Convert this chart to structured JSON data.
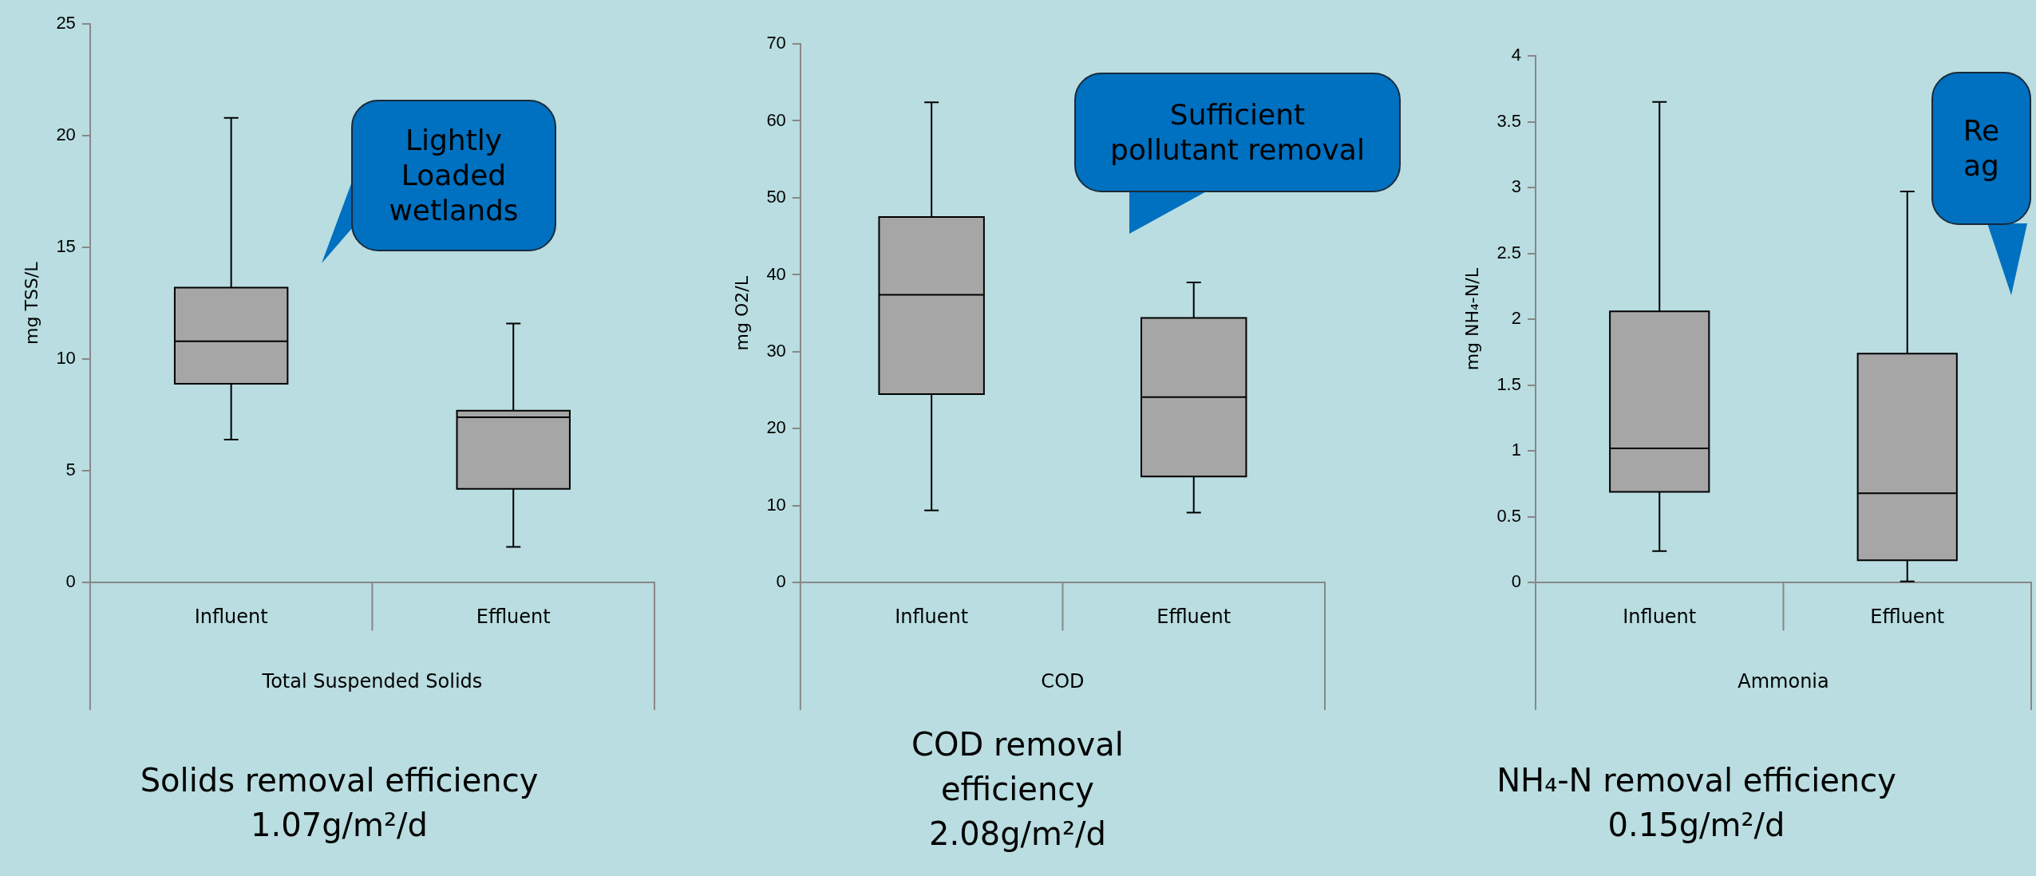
{
  "chart_data": [
    {
      "type": "box",
      "categories": [
        "Influent",
        "Effluent"
      ],
      "xlabel": "Total Suspended Solids",
      "ylabel": "mg TSS/L",
      "ylim": [
        0,
        25
      ],
      "yticks": [
        0,
        5,
        10,
        15,
        20,
        25
      ],
      "series": [
        {
          "color": "#a6a6a6",
          "boxes": [
            {
              "low": 6.4,
              "q1": 8.9,
              "median": 10.8,
              "q3": 13.2,
              "high": 20.8
            },
            {
              "low": 1.6,
              "q1": 4.2,
              "median": 7.4,
              "q3": 7.7,
              "high": 11.6
            }
          ]
        }
      ],
      "annotations": [
        "Lightly\nLoaded\nwetlands",
        "Solids removal efficiency\n1.07g/m²/d"
      ]
    },
    {
      "type": "box",
      "categories": [
        "Influent",
        "Effluent"
      ],
      "xlabel": "COD",
      "ylabel": "mg O2/L",
      "ylim": [
        0,
        70
      ],
      "yticks": [
        0,
        10,
        20,
        30,
        40,
        50,
        60,
        70
      ],
      "series": [
        {
          "color": "#a6a6a6",
          "boxes": [
            {
              "low": 9.4,
              "q1": 24.5,
              "median": 37.4,
              "q3": 47.5,
              "high": 62.4
            },
            {
              "low": 9.1,
              "q1": 13.8,
              "median": 24.1,
              "q3": 34.4,
              "high": 39.0
            }
          ]
        }
      ],
      "annotations": [
        "Sufficient\npollutant removal",
        "COD removal\nefficiency\n2.08g/m²/d"
      ]
    },
    {
      "type": "box",
      "categories": [
        "Influent",
        "Effluent"
      ],
      "xlabel": "Ammonia",
      "ylabel": "mg NH₄-N/L",
      "ylim": [
        0,
        4
      ],
      "yticks": [
        0,
        0.5,
        1,
        1.5,
        2,
        2.5,
        3,
        3.5,
        4
      ],
      "series": [
        {
          "color": "#a6a6a6",
          "boxes": [
            {
              "low": 0.24,
              "q1": 0.69,
              "median": 1.02,
              "q3": 2.06,
              "high": 3.65
            },
            {
              "low": 0.01,
              "q1": 0.17,
              "median": 0.68,
              "q3": 1.74,
              "high": 2.97
            }
          ]
        }
      ],
      "annotations": [
        "Re\nag",
        "NH₄-N removal efficiency\n0.15g/m²/d"
      ]
    }
  ]
}
